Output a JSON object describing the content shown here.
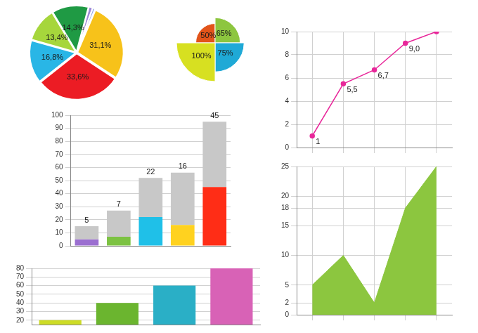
{
  "chart_data": [
    {
      "type": "pie",
      "values": [
        1.5,
        1.0,
        31.1,
        33.6,
        16.8,
        13.4,
        14.3
      ],
      "value_labels": [
        null,
        null,
        "31,1%",
        "33,6%",
        "16,8%",
        "13,4%",
        "14,3%"
      ],
      "colors": [
        "#9d86d6",
        "#8fa3e8",
        "#f7c21a",
        "#ec1c24",
        "#29b6e6",
        "#a6d63c",
        "#1f9a44"
      ],
      "data_labels": true
    },
    {
      "type": "polarArea",
      "values": [
        50,
        65,
        75,
        100
      ],
      "value_labels": [
        "50%",
        "65%",
        "75%",
        "100%"
      ],
      "colors": [
        "#e2541a",
        "#8dc63f",
        "#1fa9d6",
        "#d7e021"
      ],
      "data_labels": true,
      "ylim": [
        0,
        100
      ],
      "tick_labels": false,
      "grid": false
    },
    {
      "type": "line",
      "categories": [
        null,
        null,
        null,
        null,
        null
      ],
      "values": [
        1,
        5.5,
        6.7,
        9.0,
        10
      ],
      "value_labels": [
        "1",
        "5,5",
        "6,7",
        "9,0",
        null
      ],
      "data_labels": true,
      "color": "#e8279a",
      "marker": "circle",
      "ylim": [
        0,
        10
      ],
      "yticks": [
        0,
        2,
        4,
        6,
        8,
        10
      ],
      "grid": true,
      "tick_labels": "y"
    },
    {
      "type": "bar",
      "stacked": true,
      "categories": [
        null,
        null,
        null,
        null,
        null
      ],
      "series": [
        {
          "values": [
            5,
            7,
            22,
            16,
            45
          ],
          "colors": [
            "#9b6fd0",
            "#7cc242",
            "#1fc0e8",
            "#ffd21f",
            "#ff2d16"
          ],
          "data_labels": true
        },
        {
          "values": [
            10,
            20,
            30,
            40,
            50
          ],
          "color": "#c8c8c8"
        }
      ],
      "ylim": [
        0,
        100
      ],
      "yticks": [
        0,
        10,
        20,
        30,
        40,
        50,
        60,
        70,
        80,
        90,
        100
      ],
      "grid": true,
      "tick_labels": "y"
    },
    {
      "type": "bar",
      "categories": [
        null,
        null,
        null,
        null
      ],
      "values": [
        20,
        40,
        60,
        80
      ],
      "colors": [
        "#cddc26",
        "#6bb52f",
        "#2aafc6",
        "#d862b6"
      ],
      "ylim": [
        15,
        80
      ],
      "yticks": [
        20,
        30,
        40,
        50,
        60,
        70,
        80
      ],
      "grid": true,
      "tick_labels": "y"
    },
    {
      "type": "area",
      "categories": [
        null,
        null,
        null,
        null,
        null
      ],
      "values": [
        5,
        10,
        2,
        18,
        25
      ],
      "color": "#8cc63f",
      "ylim": [
        0,
        25
      ],
      "yticks": [
        0,
        2,
        5,
        10,
        15,
        18,
        20,
        25
      ],
      "grid": true,
      "tick_labels": "y"
    }
  ]
}
